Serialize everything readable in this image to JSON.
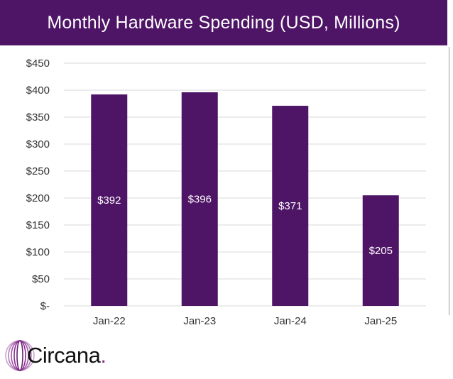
{
  "header": {
    "title": "Monthly Hardware Spending (USD, Millions)"
  },
  "colors": {
    "bar": "#4e1466",
    "title_bg": "#4e1466",
    "grid": "#d9d9d9",
    "logo_accent": "#8a2b8e"
  },
  "logo": {
    "text": "Circana",
    "dot": "."
  },
  "chart_data": {
    "type": "bar",
    "title": "Monthly Hardware Spending (USD, Millions)",
    "categories": [
      "Jan-22",
      "Jan-23",
      "Jan-24",
      "Jan-25"
    ],
    "values": [
      392,
      396,
      371,
      205
    ],
    "data_labels": [
      "$392",
      "$396",
      "$371",
      "$205"
    ],
    "ylim": [
      0,
      450
    ],
    "yticks": [
      0,
      50,
      100,
      150,
      200,
      250,
      300,
      350,
      400,
      450
    ],
    "ytick_labels": [
      "$-",
      "$50",
      "$100",
      "$150",
      "$200",
      "$250",
      "$300",
      "$350",
      "$400",
      "$450"
    ],
    "grid": true,
    "legend": "none"
  }
}
